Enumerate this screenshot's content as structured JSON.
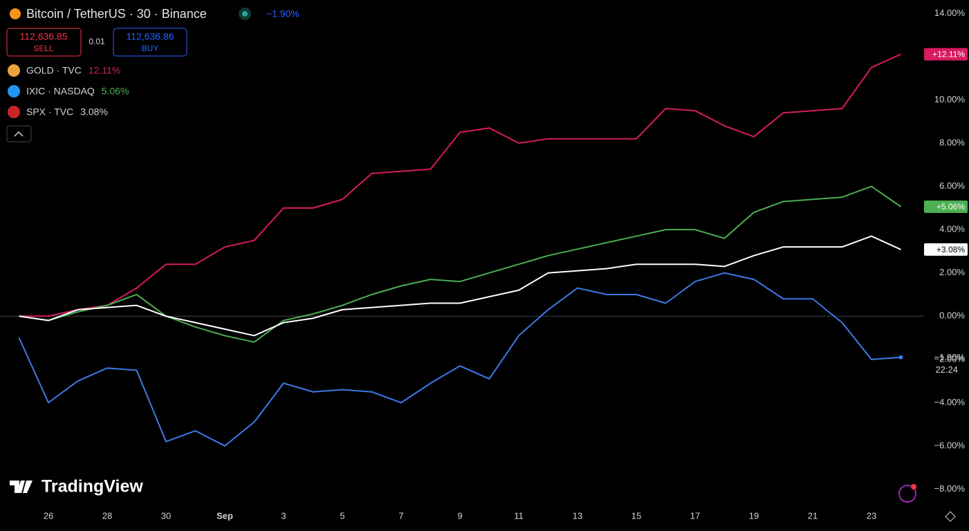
{
  "header": {
    "symbol": "Bitcoin / TetherUS · 30 · Binance",
    "change": "−1.90%",
    "sell_price": "112,636.85",
    "sell": "SELL",
    "quantity": "0.01",
    "buy_price": "112,636.86",
    "buy": "BUY",
    "logo": "TradingView"
  },
  "chart_data": {
    "type": "line",
    "categories": [
      null,
      "26",
      null,
      "28",
      null,
      "30",
      null,
      "Sep",
      null,
      "3",
      null,
      "5",
      null,
      "7",
      null,
      "9",
      null,
      "11",
      null,
      "13",
      null,
      "15",
      null,
      "17",
      null,
      "19",
      null,
      "21",
      null,
      "23",
      null
    ],
    "series": [
      {
        "name": "GOLD · TVC",
        "legend_value": "12.11%",
        "price_label": "+12.11%",
        "color": "#d81b60",
        "icon": "#e8a33d",
        "values": [
          0,
          0,
          0.3,
          0.5,
          1.3,
          2.4,
          2.4,
          3.2,
          3.5,
          5.0,
          5.0,
          5.4,
          6.6,
          6.7,
          6.8,
          8.5,
          8.7,
          8.0,
          8.2,
          8.2,
          8.2,
          8.2,
          9.6,
          9.5,
          8.8,
          8.3,
          9.4,
          9.5,
          9.6,
          11.5,
          12.11
        ]
      },
      {
        "name": "IXIC · NASDAQ",
        "legend_value": "5.06%",
        "price_label": "+5.06%",
        "color": "#4caf50",
        "icon": "#2196f3",
        "values": [
          0,
          -0.2,
          0.2,
          0.5,
          1.0,
          0,
          -0.5,
          -0.9,
          -1.2,
          -0.2,
          0.1,
          0.5,
          1.0,
          1.4,
          1.7,
          1.6,
          2.0,
          2.4,
          2.8,
          3.1,
          3.4,
          3.7,
          4.0,
          4.0,
          3.6,
          4.8,
          5.3,
          5.4,
          5.5,
          6.0,
          5.06
        ]
      },
      {
        "name": "SPX · TVC",
        "legend_value": "3.08%",
        "price_label": "+3.08%",
        "color": "#ffffff",
        "icon": "#c62828",
        "values": [
          0,
          -0.2,
          0.3,
          0.4,
          0.5,
          0,
          -0.3,
          -0.6,
          -0.9,
          -0.3,
          -0.1,
          0.3,
          0.4,
          0.5,
          0.6,
          0.6,
          0.9,
          1.2,
          2.0,
          2.1,
          2.2,
          2.4,
          2.4,
          2.4,
          2.3,
          2.8,
          3.2,
          3.2,
          3.2,
          3.7,
          3.08
        ]
      },
      {
        "name": "Bitcoin / TetherUS",
        "price_label": "−1.90%",
        "countdown": "22:24",
        "color": "#3d7ae8",
        "values": [
          -1.0,
          -4.0,
          -3.0,
          -2.4,
          -2.5,
          -5.8,
          -5.3,
          -6.0,
          -4.9,
          -3.1,
          -3.5,
          -3.4,
          -3.5,
          -4.0,
          -3.1,
          -2.3,
          -2.9,
          -0.9,
          0.3,
          1.3,
          1.0,
          1.0,
          0.6,
          1.6,
          2.0,
          1.7,
          0.8,
          0.8,
          -0.3,
          -2.0,
          -1.9
        ]
      }
    ],
    "ylim": [
      -8.4,
      14.3
    ],
    "yticks": [
      {
        "value": -8,
        "label": "−8.00%"
      },
      {
        "value": -6,
        "label": "−6.00%"
      },
      {
        "value": -4,
        "label": "−4.00%"
      },
      {
        "value": -2,
        "label": "−2.00%"
      },
      {
        "value": 0,
        "label": "0.00%"
      },
      {
        "value": 2,
        "label": "2.00%"
      },
      {
        "value": 4,
        "label": "4.00%"
      },
      {
        "value": 6,
        "label": "6.00%"
      },
      {
        "value": 8,
        "label": "8.00%"
      },
      {
        "value": 10,
        "label": "10.00%"
      },
      {
        "value": 14,
        "label": "14.00%"
      }
    ]
  }
}
